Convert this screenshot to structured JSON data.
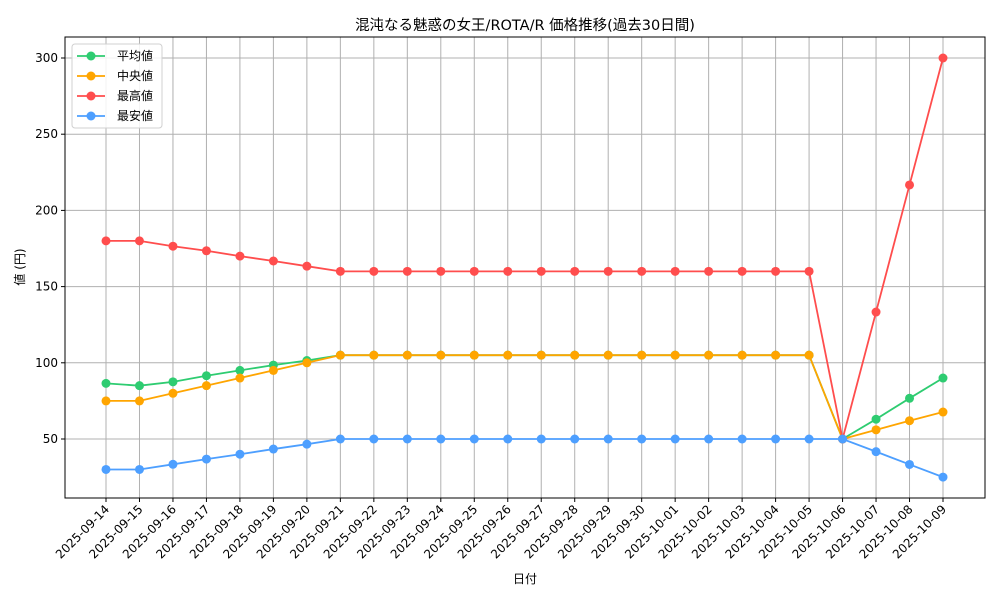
{
  "chart_data": {
    "type": "line",
    "title": "混沌なる魅惑の女王/ROTA/R 価格推移(過去30日間)",
    "xlabel": "日付",
    "ylabel": "値 (円)",
    "ylim": [
      12,
      313
    ],
    "yticks": [
      50,
      100,
      150,
      200,
      250,
      300
    ],
    "grid": true,
    "legend_position": "upper left",
    "x": [
      "2025-09-14",
      "2025-09-15",
      "2025-09-16",
      "2025-09-17",
      "2025-09-18",
      "2025-09-19",
      "2025-09-20",
      "2025-09-21",
      "2025-09-22",
      "2025-09-23",
      "2025-09-24",
      "2025-09-25",
      "2025-09-26",
      "2025-09-27",
      "2025-09-28",
      "2025-09-29",
      "2025-09-30",
      "2025-10-01",
      "2025-10-02",
      "2025-10-03",
      "2025-10-04",
      "2025-10-05",
      "2025-10-06",
      "2025-10-07",
      "2025-10-08",
      "2025-10-09"
    ],
    "series": [
      {
        "name": "平均値",
        "color": "#2ecc71",
        "values": [
          86.5,
          85,
          87.5,
          91.5,
          95,
          98.5,
          101.5,
          105,
          105,
          105,
          105,
          105,
          105,
          105,
          105,
          105,
          105,
          105,
          105,
          105,
          105,
          105,
          50,
          63,
          76.7,
          90
        ]
      },
      {
        "name": "中央値",
        "color": "#ffa500",
        "values": [
          75,
          75,
          80,
          85,
          90,
          95,
          100,
          105,
          105,
          105,
          105,
          105,
          105,
          105,
          105,
          105,
          105,
          105,
          105,
          105,
          105,
          105,
          50,
          56,
          62,
          67.7
        ]
      },
      {
        "name": "最高値",
        "color": "#ff4d4d",
        "values": [
          180,
          180,
          176.5,
          173.5,
          170,
          166.8,
          163.4,
          160,
          160,
          160,
          160,
          160,
          160,
          160,
          160,
          160,
          160,
          160,
          160,
          160,
          160,
          160,
          50,
          133.3,
          216.7,
          300
        ]
      },
      {
        "name": "最安値",
        "color": "#4d9fff",
        "values": [
          30,
          30,
          33.4,
          36.8,
          40,
          43.4,
          46.6,
          50,
          50,
          50,
          50,
          50,
          50,
          50,
          50,
          50,
          50,
          50,
          50,
          50,
          50,
          50,
          50,
          41.7,
          33.3,
          25
        ]
      }
    ]
  }
}
